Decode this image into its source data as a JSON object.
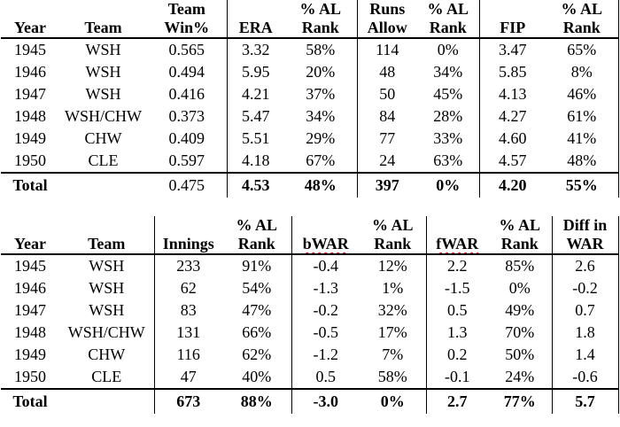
{
  "page": {
    "background": "#ffffff",
    "text_color": "#000000",
    "rule_color": "#000000",
    "squiggle_color": "#e00000"
  },
  "tables": [
    {
      "name": "pitching-rate-stats",
      "columns": [
        {
          "id": "year",
          "header": "Year",
          "width": 66
        },
        {
          "id": "team",
          "header": "Team",
          "width": 99
        },
        {
          "id": "team-win-pct",
          "header": "Team\nWin%",
          "width": 90
        },
        {
          "id": "era",
          "header": "ERA",
          "width": 65,
          "divider": true
        },
        {
          "id": "era-al-rank",
          "header": "% AL\nRank",
          "width": 82
        },
        {
          "id": "runs-allow",
          "header": "Runs\nAllow",
          "width": 68,
          "divider": true
        },
        {
          "id": "runs-al-rank",
          "header": "% AL\nRank",
          "width": 70
        },
        {
          "id": "fip",
          "header": "FIP",
          "width": 75,
          "divider": true
        },
        {
          "id": "fip-al-rank",
          "header": "% AL\nRank",
          "width": 82
        }
      ],
      "rows": [
        [
          "1945",
          "WSH",
          "0.565",
          "3.32",
          "58%",
          "114",
          "0%",
          "3.47",
          "65%"
        ],
        [
          "1946",
          "WSH",
          "0.494",
          "5.95",
          "20%",
          "48",
          "34%",
          "5.85",
          "8%"
        ],
        [
          "1947",
          "WSH",
          "0.416",
          "4.21",
          "37%",
          "50",
          "45%",
          "4.13",
          "46%"
        ],
        [
          "1948",
          "WSH/CHW",
          "0.373",
          "5.47",
          "34%",
          "84",
          "28%",
          "4.27",
          "61%"
        ],
        [
          "1949",
          "CHW",
          "0.409",
          "5.51",
          "29%",
          "77",
          "33%",
          "4.60",
          "41%"
        ],
        [
          "1950",
          "CLE",
          "0.597",
          "4.18",
          "67%",
          "24",
          "63%",
          "4.57",
          "48%"
        ]
      ],
      "total": {
        "cells": [
          "Total",
          "",
          "0.475",
          "4.53",
          "48%",
          "397",
          "0%",
          "4.20",
          "55%"
        ],
        "bold": [
          true,
          false,
          false,
          true,
          true,
          true,
          true,
          true,
          true
        ]
      }
    },
    {
      "name": "pitching-war-stats",
      "columns": [
        {
          "id": "year",
          "header": "Year",
          "width": 66
        },
        {
          "id": "team",
          "header": "Team",
          "width": 107
        },
        {
          "id": "innings",
          "header": "Innings",
          "width": 77,
          "divider": true
        },
        {
          "id": "innings-al-rank",
          "header": "% AL\nRank",
          "width": 78
        },
        {
          "id": "bwar",
          "header": "bWAR",
          "width": 77,
          "divider": true,
          "squiggle": true
        },
        {
          "id": "bwar-al-rank",
          "header": "% AL\nRank",
          "width": 75
        },
        {
          "id": "fwar",
          "header": "fWAR",
          "width": 70,
          "divider": true,
          "squiggle": true
        },
        {
          "id": "fwar-al-rank",
          "header": "% AL\nRank",
          "width": 72
        },
        {
          "id": "war-diff",
          "header": "Diff in\nWAR",
          "width": 75,
          "divider": true
        }
      ],
      "rows": [
        [
          "1945",
          "WSH",
          "233",
          "91%",
          "-0.4",
          "12%",
          "2.2",
          "85%",
          "2.6"
        ],
        [
          "1946",
          "WSH",
          "62",
          "54%",
          "-1.3",
          "1%",
          "-1.5",
          "0%",
          "-0.2"
        ],
        [
          "1947",
          "WSH",
          "83",
          "47%",
          "-0.2",
          "32%",
          "0.5",
          "49%",
          "0.7"
        ],
        [
          "1948",
          "WSH/CHW",
          "131",
          "66%",
          "-0.5",
          "17%",
          "1.3",
          "70%",
          "1.8"
        ],
        [
          "1949",
          "CHW",
          "116",
          "62%",
          "-1.2",
          "7%",
          "0.2",
          "50%",
          "1.4"
        ],
        [
          "1950",
          "CLE",
          "47",
          "40%",
          "0.5",
          "58%",
          "-0.1",
          "24%",
          "-0.6"
        ]
      ],
      "total": {
        "cells": [
          "Total",
          "",
          "673",
          "88%",
          "-3.0",
          "0%",
          "2.7",
          "77%",
          "5.7"
        ],
        "bold": [
          true,
          false,
          true,
          true,
          true,
          true,
          true,
          true,
          true
        ]
      }
    }
  ]
}
